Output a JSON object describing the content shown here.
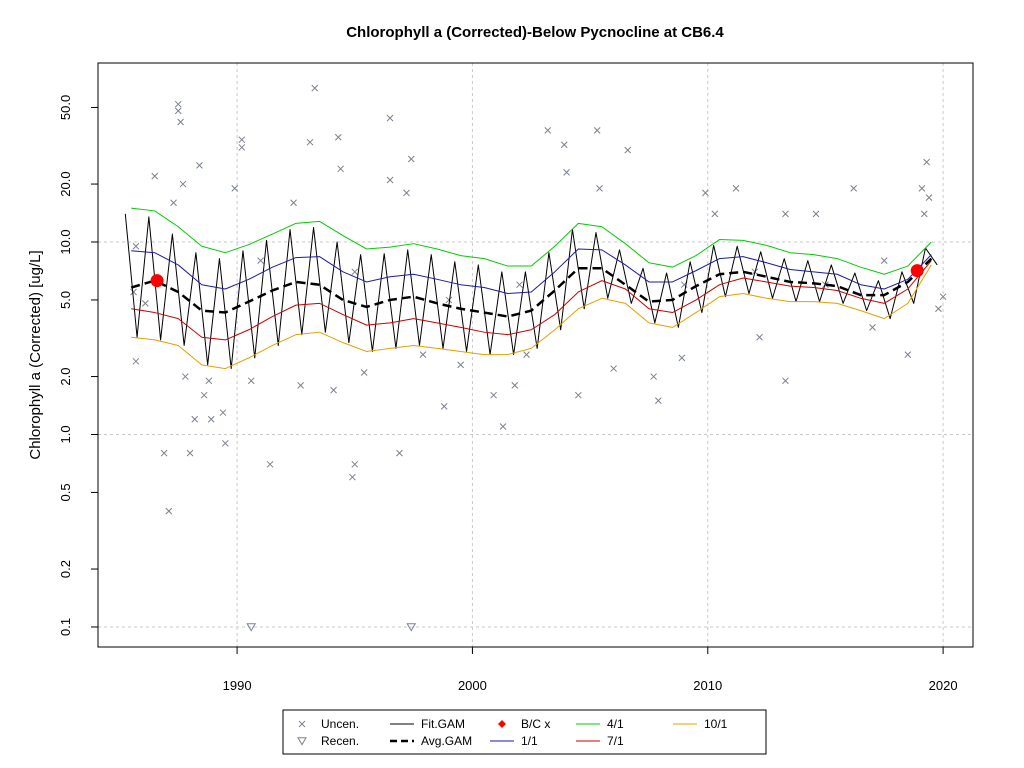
{
  "chart_data": {
    "type": "line",
    "title": "Chlorophyll a (Corrected)-Below Pycnocline at CB6.4",
    "y_label": "Chlorophyll a (Corrected) [ug/L]",
    "log_y": true,
    "xlim": [
      1984.09,
      2021.27
    ],
    "ylim": [
      0.0787,
      85.1
    ],
    "xticks": [
      1990,
      2000,
      2010,
      2020
    ],
    "yticks": [
      0.1,
      0.2,
      0.5,
      {
        "value": 1,
        "label": "1.0"
      },
      {
        "value": 2,
        "label": "2.0"
      },
      {
        "value": 5,
        "label": "5.0"
      },
      {
        "value": 10,
        "label": "10.0"
      },
      {
        "value": 20,
        "label": "20.0"
      },
      {
        "value": 50,
        "label": "50.0"
      }
    ],
    "y_gridlines": [
      0.1,
      1,
      10
    ],
    "grid": true,
    "legend_position": "bottom",
    "series": [
      {
        "name": "Uncen.",
        "style": "cross",
        "color": "#7a8290",
        "x": [
          1985.6,
          1985.7,
          1985.7,
          1986.1,
          1986.5,
          1986.9,
          1987.1,
          1987.3,
          1987.5,
          1987.5,
          1987.6,
          1987.7,
          1987.8,
          1988.0,
          1988.2,
          1988.4,
          1988.6,
          1988.8,
          1988.9,
          1989.4,
          1989.5,
          1989.9,
          1990.2,
          1990.2,
          1990.6,
          1991.0,
          1991.4,
          1992.4,
          1992.7,
          1993.1,
          1993.3,
          1994.1,
          1994.3,
          1994.4,
          1994.9,
          1995.0,
          1995.0,
          1995.4,
          1996.5,
          1996.5,
          1996.9,
          1997.2,
          1997.4,
          1997.9,
          1998.8,
          1999.0,
          1999.5,
          2000.9,
          2001.3,
          2001.8,
          2002.0,
          2002.3,
          2003.2,
          2003.9,
          2004.0,
          2004.5,
          2005.3,
          2005.4,
          2006.0,
          2006.6,
          2007.7,
          2007.9,
          2008.9,
          2009.0,
          2009.9,
          2010.3,
          2011.2,
          2012.0,
          2012.2,
          2013.3,
          2013.3,
          2014.6,
          2015.0,
          2016.2,
          2017.0,
          2017.5,
          2018.5,
          2019.1,
          2019.2,
          2019.3,
          2019.4,
          2019.8,
          2020.0
        ],
        "values": [
          5.5,
          2.4,
          9.5,
          4.8,
          22,
          0.8,
          0.4,
          16,
          52,
          48,
          42,
          20,
          2.0,
          0.8,
          1.2,
          25,
          1.6,
          1.9,
          1.2,
          1.3,
          0.9,
          19,
          34,
          31,
          1.9,
          8,
          0.7,
          16,
          1.8,
          33,
          63,
          1.7,
          35,
          24,
          0.6,
          0.7,
          7,
          2.1,
          21,
          44,
          0.8,
          18,
          27,
          2.6,
          1.4,
          5,
          2.3,
          1.6,
          1.1,
          1.8,
          6,
          2.6,
          38,
          32,
          23,
          1.6,
          38,
          19,
          2.2,
          30,
          2.0,
          1.5,
          2.5,
          6,
          18,
          14,
          19,
          7,
          3.2,
          1.9,
          14,
          14,
          6,
          19,
          3.6,
          8,
          2.6,
          19,
          14,
          26,
          17,
          4.5,
          5.2
        ]
      },
      {
        "name": "Recen.",
        "style": "triangle",
        "color": "#7a8290",
        "x": [
          1990.6,
          1997.4
        ],
        "values": [
          0.1,
          0.1
        ]
      },
      {
        "name": "Fit.GAM",
        "style": "line",
        "color": "#000000",
        "width": 1,
        "x": [
          1985.25,
          1985.75,
          1986.25,
          1986.75,
          1987.25,
          1987.75,
          1988.25,
          1988.75,
          1989.25,
          1989.75,
          1990.25,
          1990.75,
          1991.25,
          1991.75,
          1992.25,
          1992.75,
          1993.25,
          1993.75,
          1994.25,
          1994.75,
          1995.25,
          1995.75,
          1996.25,
          1996.75,
          1997.25,
          1997.75,
          1998.25,
          1998.75,
          1999.25,
          1999.75,
          2000.25,
          2000.75,
          2001.25,
          2001.75,
          2002.25,
          2002.75,
          2003.25,
          2003.75,
          2004.25,
          2004.75,
          2005.25,
          2005.75,
          2006.25,
          2006.75,
          2007.25,
          2007.75,
          2008.25,
          2008.75,
          2009.25,
          2009.75,
          2010.25,
          2010.75,
          2011.25,
          2011.75,
          2012.25,
          2012.75,
          2013.25,
          2013.75,
          2014.25,
          2014.75,
          2015.25,
          2015.75,
          2016.25,
          2016.75,
          2017.25,
          2017.75,
          2018.25,
          2018.75,
          2019.25,
          2019.75
        ],
        "values": [
          14,
          3.2,
          13.5,
          3.1,
          11,
          2.9,
          8.8,
          2.3,
          8.2,
          2.2,
          9,
          2.5,
          10.2,
          2.9,
          11.6,
          3.3,
          11.9,
          3.4,
          10,
          3.0,
          8.6,
          2.7,
          8.7,
          2.8,
          9.1,
          2.9,
          8.6,
          2.8,
          7.9,
          2.7,
          7.6,
          2.6,
          7,
          2.6,
          7,
          2.8,
          8.8,
          3.5,
          11.6,
          4.5,
          11.2,
          5.1,
          9.1,
          4.8,
          7.3,
          3.8,
          6.9,
          3.6,
          7.9,
          4.3,
          9.6,
          5.2,
          9.5,
          5.4,
          8.9,
          5.1,
          8.2,
          4.9,
          8,
          4.9,
          7.6,
          4.8,
          6.9,
          4.4,
          6.3,
          4.0,
          7,
          4.8,
          9.3,
          7.6
        ]
      },
      {
        "name": "Avg.GAM",
        "style": "dashed",
        "color": "#000000",
        "width": 2.5,
        "x": [
          1985.5,
          1986.5,
          1987.5,
          1988.5,
          1989.5,
          1990.5,
          1991.5,
          1992.5,
          1993.5,
          1994.5,
          1995.5,
          1996.5,
          1997.5,
          1998.5,
          1999.5,
          2000.5,
          2001.5,
          2002.5,
          2003.5,
          2004.5,
          2005.5,
          2006.5,
          2007.5,
          2008.5,
          2009.5,
          2010.5,
          2011.5,
          2012.5,
          2013.5,
          2014.5,
          2015.5,
          2016.5,
          2017.5,
          2018.5,
          2019.5
        ],
        "values": [
          5.8,
          6.3,
          5.5,
          4.4,
          4.3,
          4.9,
          5.6,
          6.2,
          6.0,
          5.0,
          4.6,
          5.0,
          5.2,
          4.8,
          4.5,
          4.3,
          4.1,
          4.4,
          5.6,
          7.3,
          7.3,
          6.0,
          4.9,
          5.0,
          5.9,
          6.8,
          7.0,
          6.6,
          6.2,
          6.1,
          5.9,
          5.3,
          5.3,
          6.2,
          8.2
        ]
      },
      {
        "name": "B/C x",
        "style": "dot",
        "color": "#ff0000",
        "x": [
          1986.6,
          2018.9
        ],
        "values": [
          6.3,
          7.1
        ]
      },
      {
        "name": "1/1",
        "style": "line",
        "color": "#1a1aa8",
        "width": 1,
        "x": [
          1985.5,
          1986.5,
          1987.5,
          1988.5,
          1989.5,
          1990.5,
          1991.5,
          1992.5,
          1993.5,
          1994.5,
          1995.5,
          1996.5,
          1997.5,
          1998.5,
          1999.5,
          2000.5,
          2001.5,
          2002.5,
          2003.5,
          2004.5,
          2005.5,
          2006.5,
          2007.5,
          2008.5,
          2009.5,
          2010.5,
          2011.5,
          2012.5,
          2013.5,
          2014.5,
          2015.5,
          2016.5,
          2017.5,
          2018.5,
          2019.5
        ],
        "values": [
          9.0,
          8.8,
          7.6,
          6.0,
          5.7,
          6.4,
          7.4,
          8.3,
          8.4,
          7.0,
          6.2,
          6.6,
          6.8,
          6.4,
          6.0,
          5.8,
          5.4,
          5.5,
          7.0,
          9.2,
          9.1,
          7.6,
          6.2,
          6.2,
          7.1,
          8.2,
          8.4,
          7.8,
          7.2,
          7.0,
          6.8,
          6.0,
          5.7,
          6.4,
          8.6
        ]
      },
      {
        "name": "4/1",
        "style": "line",
        "color": "#00cc00",
        "width": 1,
        "x": [
          1985.5,
          1986.5,
          1987.5,
          1988.5,
          1989.5,
          1990.5,
          1991.5,
          1992.5,
          1993.5,
          1994.5,
          1995.5,
          1996.5,
          1997.5,
          1998.5,
          1999.5,
          2000.5,
          2001.5,
          2002.5,
          2003.5,
          2004.5,
          2005.5,
          2006.5,
          2007.5,
          2008.5,
          2009.5,
          2010.5,
          2011.5,
          2012.5,
          2013.5,
          2014.5,
          2015.5,
          2016.5,
          2017.5,
          2018.5,
          2019.5
        ],
        "values": [
          15,
          14.5,
          12,
          9.5,
          8.8,
          9.7,
          11,
          12.5,
          12.8,
          10.8,
          9.2,
          9.4,
          9.8,
          9.2,
          8.5,
          8.2,
          7.5,
          7.5,
          9.5,
          12.5,
          12.0,
          9.8,
          7.8,
          7.4,
          8.5,
          10.3,
          10.2,
          9.6,
          8.8,
          8.6,
          8.2,
          7.4,
          6.8,
          7.5,
          10.0
        ]
      },
      {
        "name": "7/1",
        "style": "line",
        "color": "#cc0000",
        "width": 1,
        "x": [
          1985.5,
          1986.5,
          1987.5,
          1988.5,
          1989.5,
          1990.5,
          1991.5,
          1992.5,
          1993.5,
          1994.5,
          1995.5,
          1996.5,
          1997.5,
          1998.5,
          1999.5,
          2000.5,
          2001.5,
          2002.5,
          2003.5,
          2004.5,
          2005.5,
          2006.5,
          2007.5,
          2008.5,
          2009.5,
          2010.5,
          2011.5,
          2012.5,
          2013.5,
          2014.5,
          2015.5,
          2016.5,
          2017.5,
          2018.5,
          2019.5
        ],
        "values": [
          4.5,
          4.3,
          4.0,
          3.2,
          3.1,
          3.5,
          4.1,
          4.7,
          4.8,
          4.2,
          3.7,
          3.8,
          4.0,
          3.8,
          3.6,
          3.4,
          3.3,
          3.5,
          4.2,
          5.5,
          6.3,
          5.7,
          4.5,
          4.3,
          5.0,
          6.0,
          6.5,
          6.2,
          5.9,
          5.8,
          5.6,
          5.1,
          4.8,
          5.7,
          8.0
        ]
      },
      {
        "name": "10/1",
        "style": "line",
        "color": "#e6a000",
        "width": 1,
        "x": [
          1985.5,
          1986.5,
          1987.5,
          1988.5,
          1989.5,
          1990.5,
          1991.5,
          1992.5,
          1993.5,
          1994.5,
          1995.5,
          1996.5,
          1997.5,
          1998.5,
          1999.5,
          2000.5,
          2001.5,
          2002.5,
          2003.5,
          2004.5,
          2005.5,
          2006.5,
          2007.5,
          2008.5,
          2009.5,
          2010.5,
          2011.5,
          2012.5,
          2013.5,
          2014.5,
          2015.5,
          2016.5,
          2017.5,
          2018.5,
          2019.5
        ],
        "values": [
          3.2,
          3.1,
          2.9,
          2.3,
          2.2,
          2.5,
          2.9,
          3.3,
          3.4,
          3.0,
          2.7,
          2.8,
          2.9,
          2.8,
          2.7,
          2.6,
          2.6,
          2.8,
          3.5,
          4.5,
          5.1,
          4.8,
          3.8,
          3.6,
          4.3,
          5.2,
          5.4,
          5.1,
          4.9,
          4.9,
          4.8,
          4.4,
          4.0,
          4.8,
          7.6
        ]
      }
    ]
  }
}
